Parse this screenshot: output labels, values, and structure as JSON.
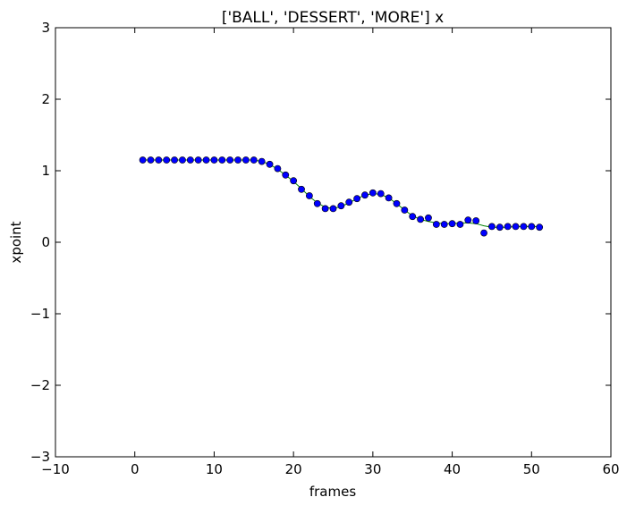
{
  "chart_data": {
    "type": "scatter",
    "title": "['BALL', 'DESSERT', 'MORE'] x",
    "xlabel": "frames",
    "ylabel": "xpoint",
    "xlim": [
      -10,
      60
    ],
    "ylim": [
      -3,
      3
    ],
    "x_ticks": [
      -10,
      0,
      10,
      20,
      30,
      40,
      50,
      60
    ],
    "x_tick_labels": [
      "−10",
      "0",
      "10",
      "20",
      "30",
      "40",
      "50",
      "60"
    ],
    "y_ticks": [
      -3,
      -2,
      -1,
      0,
      1,
      2,
      3
    ],
    "y_tick_labels": [
      "−3",
      "−2",
      "−1",
      "0",
      "1",
      "2",
      "3"
    ],
    "grid": false,
    "series": [
      {
        "kind": "scatter",
        "color": "#0000ff",
        "x": [
          1,
          2,
          3,
          4,
          5,
          6,
          7,
          8,
          9,
          10,
          11,
          12,
          13,
          14,
          15,
          16,
          17,
          18,
          19,
          20,
          21,
          22,
          23,
          24,
          25,
          26,
          27,
          28,
          29,
          30,
          31,
          32,
          33,
          34,
          35,
          36,
          37,
          38,
          39,
          40,
          41,
          42,
          43,
          44,
          45,
          46,
          47,
          48,
          49,
          50,
          51
        ],
        "y": [
          1.15,
          1.15,
          1.15,
          1.15,
          1.15,
          1.15,
          1.15,
          1.15,
          1.15,
          1.15,
          1.15,
          1.15,
          1.15,
          1.15,
          1.15,
          1.13,
          1.09,
          1.03,
          0.94,
          0.86,
          0.74,
          0.65,
          0.54,
          0.47,
          0.47,
          0.51,
          0.56,
          0.61,
          0.66,
          0.69,
          0.68,
          0.62,
          0.54,
          0.45,
          0.36,
          0.32,
          0.34,
          0.25,
          0.25,
          0.26,
          0.25,
          0.31,
          0.3,
          0.13,
          0.22,
          0.21,
          0.22,
          0.22,
          0.22,
          0.22,
          0.21
        ]
      },
      {
        "kind": "line",
        "color": "#008000",
        "x": [
          1,
          2,
          3,
          4,
          5,
          6,
          7,
          8,
          9,
          10,
          11,
          12,
          13,
          14,
          15,
          16,
          17,
          18,
          19,
          20,
          21,
          22,
          23,
          24,
          25,
          26,
          27,
          28,
          29,
          30,
          31,
          32,
          33,
          34,
          35,
          36,
          37,
          38,
          39,
          40,
          41,
          42,
          43,
          44,
          45,
          46,
          47,
          48,
          49,
          50,
          51
        ],
        "y": [
          1.15,
          1.15,
          1.15,
          1.15,
          1.15,
          1.15,
          1.15,
          1.15,
          1.15,
          1.15,
          1.15,
          1.15,
          1.15,
          1.15,
          1.15,
          1.13,
          1.09,
          1.02,
          0.94,
          0.85,
          0.75,
          0.64,
          0.55,
          0.49,
          0.47,
          0.5,
          0.55,
          0.61,
          0.66,
          0.68,
          0.67,
          0.62,
          0.54,
          0.45,
          0.37,
          0.32,
          0.29,
          0.27,
          0.26,
          0.26,
          0.27,
          0.27,
          0.26,
          0.23,
          0.21,
          0.21,
          0.21,
          0.22,
          0.22,
          0.22,
          0.22
        ]
      }
    ]
  }
}
